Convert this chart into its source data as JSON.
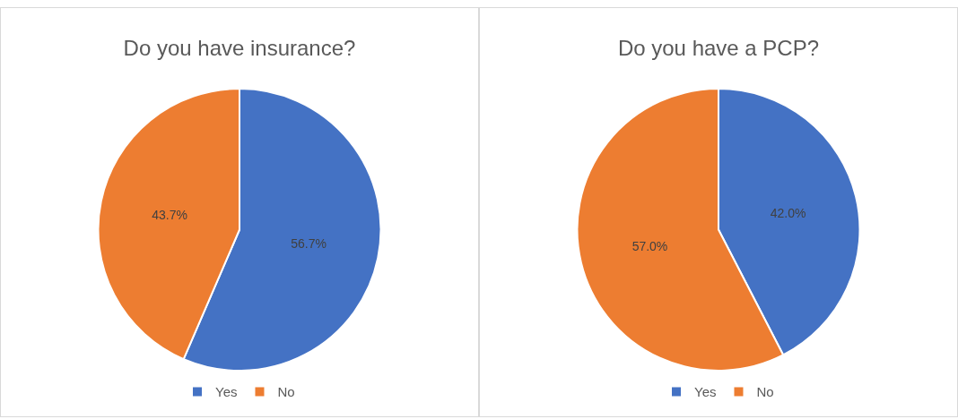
{
  "chart_data": [
    {
      "type": "pie",
      "title": "Do you have insurance?",
      "categories": [
        "Yes",
        "No"
      ],
      "values": [
        56.7,
        43.7
      ],
      "colors": [
        "#4472c4",
        "#ed7d31"
      ],
      "value_labels": [
        "56.7%",
        "43.7%"
      ],
      "legend": "bottom"
    },
    {
      "type": "pie",
      "title": "Do you have a PCP?",
      "categories": [
        "Yes",
        "No"
      ],
      "values": [
        42.0,
        57.0
      ],
      "colors": [
        "#4472c4",
        "#ed7d31"
      ],
      "value_labels": [
        "42.0%",
        "57.0%"
      ],
      "legend": "bottom"
    }
  ]
}
